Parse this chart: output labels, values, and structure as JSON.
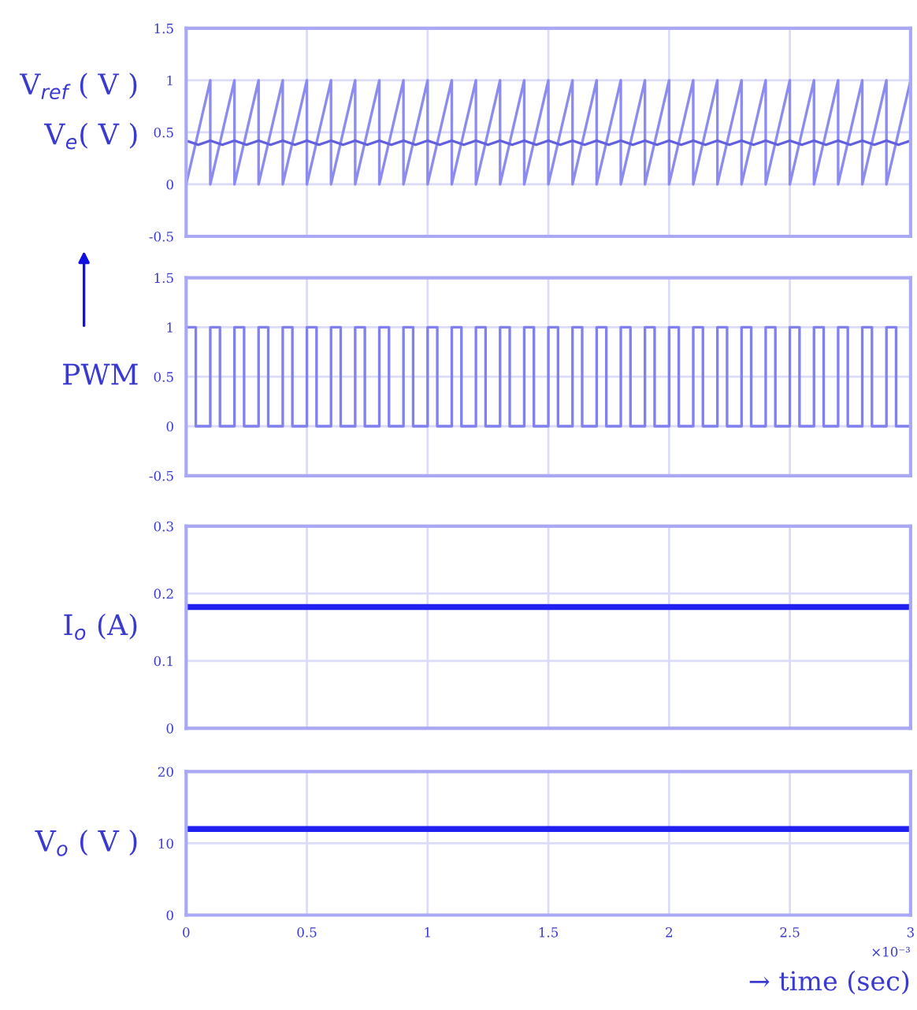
{
  "chart_data": [
    {
      "type": "line",
      "tick_labels": "y",
      "grid": true,
      "xlim": [
        0,
        3
      ],
      "xticks": [
        0,
        0.5,
        1,
        1.5,
        2,
        2.5,
        3
      ],
      "ylim": [
        -0.5,
        1.5
      ],
      "yticks": [
        -0.5,
        0,
        0.5,
        1,
        1.5
      ],
      "series": [
        {
          "name": "V$_{ref}$ ( V )",
          "type": "line",
          "color": "#8c8cf0",
          "x": [
            0,
            0.1,
            0.1,
            0.2,
            0.2,
            0.3,
            0.3,
            0.4,
            0.4,
            0.5,
            0.5,
            0.6,
            0.6,
            0.7,
            0.7,
            0.8,
            0.8,
            0.9,
            0.9,
            1.0,
            1.0,
            1.1,
            1.1,
            1.2,
            1.2,
            1.3,
            1.3,
            1.4,
            1.4,
            1.5,
            1.5,
            1.6,
            1.6,
            1.7,
            1.7,
            1.8,
            1.8,
            1.9,
            1.9,
            2.0,
            2.0,
            2.1,
            2.1,
            2.2,
            2.2,
            2.3,
            2.3,
            2.4,
            2.4,
            2.5,
            2.5,
            2.6,
            2.6,
            2.7,
            2.7,
            2.8,
            2.8,
            2.9,
            2.9,
            3.0
          ],
          "values": [
            0,
            1,
            0,
            1,
            0,
            1,
            0,
            1,
            0,
            1,
            0,
            1,
            0,
            1,
            0,
            1,
            0,
            1,
            0,
            1,
            0,
            1,
            0,
            1,
            0,
            1,
            0,
            1,
            0,
            1,
            0,
            1,
            0,
            1,
            0,
            1,
            0,
            1,
            0,
            1,
            0,
            1,
            0,
            1,
            0,
            1,
            0,
            1,
            0,
            1,
            0,
            1,
            0,
            1,
            0,
            1,
            0,
            1,
            0,
            1
          ]
        },
        {
          "name": "V$_{e}$( V )",
          "type": "line",
          "color": "#6060e0",
          "x": [
            0,
            0.05,
            0.1,
            0.15,
            0.2,
            0.25,
            0.3,
            0.35,
            0.4,
            0.45,
            0.5,
            0.55,
            0.6,
            0.65,
            0.7,
            0.75,
            0.8,
            0.85,
            0.9,
            0.95,
            1.0,
            1.05,
            1.1,
            1.15,
            1.2,
            1.25,
            1.3,
            1.35,
            1.4,
            1.45,
            1.5,
            1.55,
            1.6,
            1.65,
            1.7,
            1.75,
            1.8,
            1.85,
            1.9,
            1.95,
            2.0,
            2.05,
            2.1,
            2.15,
            2.2,
            2.25,
            2.3,
            2.35,
            2.4,
            2.45,
            2.5,
            2.55,
            2.6,
            2.65,
            2.7,
            2.75,
            2.8,
            2.85,
            2.9,
            2.95,
            3.0
          ],
          "values": [
            0.42,
            0.38,
            0.42,
            0.38,
            0.42,
            0.38,
            0.42,
            0.38,
            0.42,
            0.38,
            0.42,
            0.38,
            0.42,
            0.38,
            0.42,
            0.38,
            0.42,
            0.38,
            0.42,
            0.38,
            0.42,
            0.38,
            0.42,
            0.38,
            0.42,
            0.38,
            0.42,
            0.38,
            0.42,
            0.38,
            0.42,
            0.38,
            0.42,
            0.38,
            0.42,
            0.38,
            0.42,
            0.38,
            0.42,
            0.38,
            0.42,
            0.38,
            0.42,
            0.38,
            0.42,
            0.38,
            0.42,
            0.38,
            0.42,
            0.38,
            0.42,
            0.38,
            0.42,
            0.38,
            0.42,
            0.38,
            0.42,
            0.38,
            0.42,
            0.38,
            0.42
          ]
        }
      ]
    },
    {
      "type": "line",
      "ylabel": "PWM",
      "tick_labels": "y",
      "grid": true,
      "xlim": [
        0,
        3
      ],
      "xticks": [
        0,
        0.5,
        1,
        1.5,
        2,
        2.5,
        3
      ],
      "ylim": [
        -0.5,
        1.5
      ],
      "yticks": [
        -0.5,
        0,
        0.5,
        1,
        1.5
      ],
      "series": [
        {
          "type": "step",
          "color": "#8080f0",
          "x": [
            0,
            0.04,
            0.1,
            0.14,
            0.2,
            0.24,
            0.3,
            0.34,
            0.4,
            0.44,
            0.5,
            0.54,
            0.6,
            0.64,
            0.7,
            0.74,
            0.8,
            0.84,
            0.9,
            0.94,
            1.0,
            1.04,
            1.1,
            1.14,
            1.2,
            1.24,
            1.3,
            1.34,
            1.4,
            1.44,
            1.5,
            1.54,
            1.6,
            1.64,
            1.7,
            1.74,
            1.8,
            1.84,
            1.9,
            1.94,
            2.0,
            2.04,
            2.1,
            2.14,
            2.2,
            2.24,
            2.3,
            2.34,
            2.4,
            2.44,
            2.5,
            2.54,
            2.6,
            2.64,
            2.7,
            2.74,
            2.8,
            2.84,
            2.9,
            2.94,
            3.0
          ],
          "values": [
            1,
            0,
            1,
            0,
            1,
            0,
            1,
            0,
            1,
            0,
            1,
            0,
            1,
            0,
            1,
            0,
            1,
            0,
            1,
            0,
            1,
            0,
            1,
            0,
            1,
            0,
            1,
            0,
            1,
            0,
            1,
            0,
            1,
            0,
            1,
            0,
            1,
            0,
            1,
            0,
            1,
            0,
            1,
            0,
            1,
            0,
            1,
            0,
            1,
            0,
            1,
            0,
            1,
            0,
            1,
            0,
            1,
            0,
            1,
            0,
            0
          ]
        }
      ]
    },
    {
      "type": "line",
      "ylabel": "I$_{o}$ (A)",
      "tick_labels": "y",
      "grid": true,
      "xlim": [
        0,
        3
      ],
      "xticks": [
        0,
        0.5,
        1,
        1.5,
        2,
        2.5,
        3
      ],
      "ylim": [
        0,
        0.3
      ],
      "yticks": [
        0,
        0.1,
        0.2,
        0.3
      ],
      "series": [
        {
          "type": "line",
          "color": "#2020f0",
          "x": [
            0,
            3
          ],
          "values": [
            0.18,
            0.18
          ]
        }
      ]
    },
    {
      "type": "line",
      "ylabel": "V$_{o}$ ( V )",
      "xlabel": "→ time (sec)",
      "grid": true,
      "xlim": [
        0,
        3
      ],
      "xticks": [
        0,
        0.5,
        1,
        1.5,
        2,
        2.5,
        3
      ],
      "ylim": [
        0,
        20
      ],
      "yticks": [
        0,
        10,
        20
      ],
      "annotations": [
        "×10⁻³"
      ],
      "series": [
        {
          "type": "line",
          "color": "#2020f0",
          "x": [
            0,
            3
          ],
          "values": [
            12,
            12
          ]
        }
      ]
    }
  ]
}
